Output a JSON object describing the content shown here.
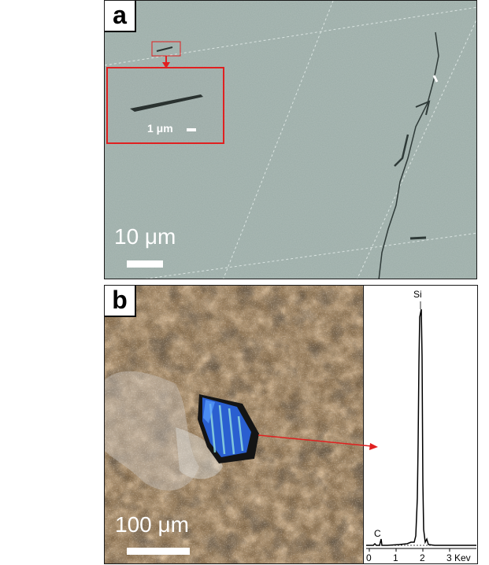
{
  "panel_a": {
    "label": "a",
    "scale_text": "10 μm",
    "inset_scale_text": "1 μm"
  },
  "panel_b": {
    "label": "b",
    "scale_text": "100 μm"
  },
  "spectrum": {
    "peak_si_label": "Si",
    "peak_c_label": "C",
    "axis_ticks": [
      "0",
      "1",
      "2",
      "3 Kev"
    ]
  },
  "colors": {
    "sem_background": "#9aaba6",
    "highlight_red": "#e02020",
    "micrograph_brown": "#6e5a3e",
    "crystal_blue": "#2a5fd0"
  }
}
